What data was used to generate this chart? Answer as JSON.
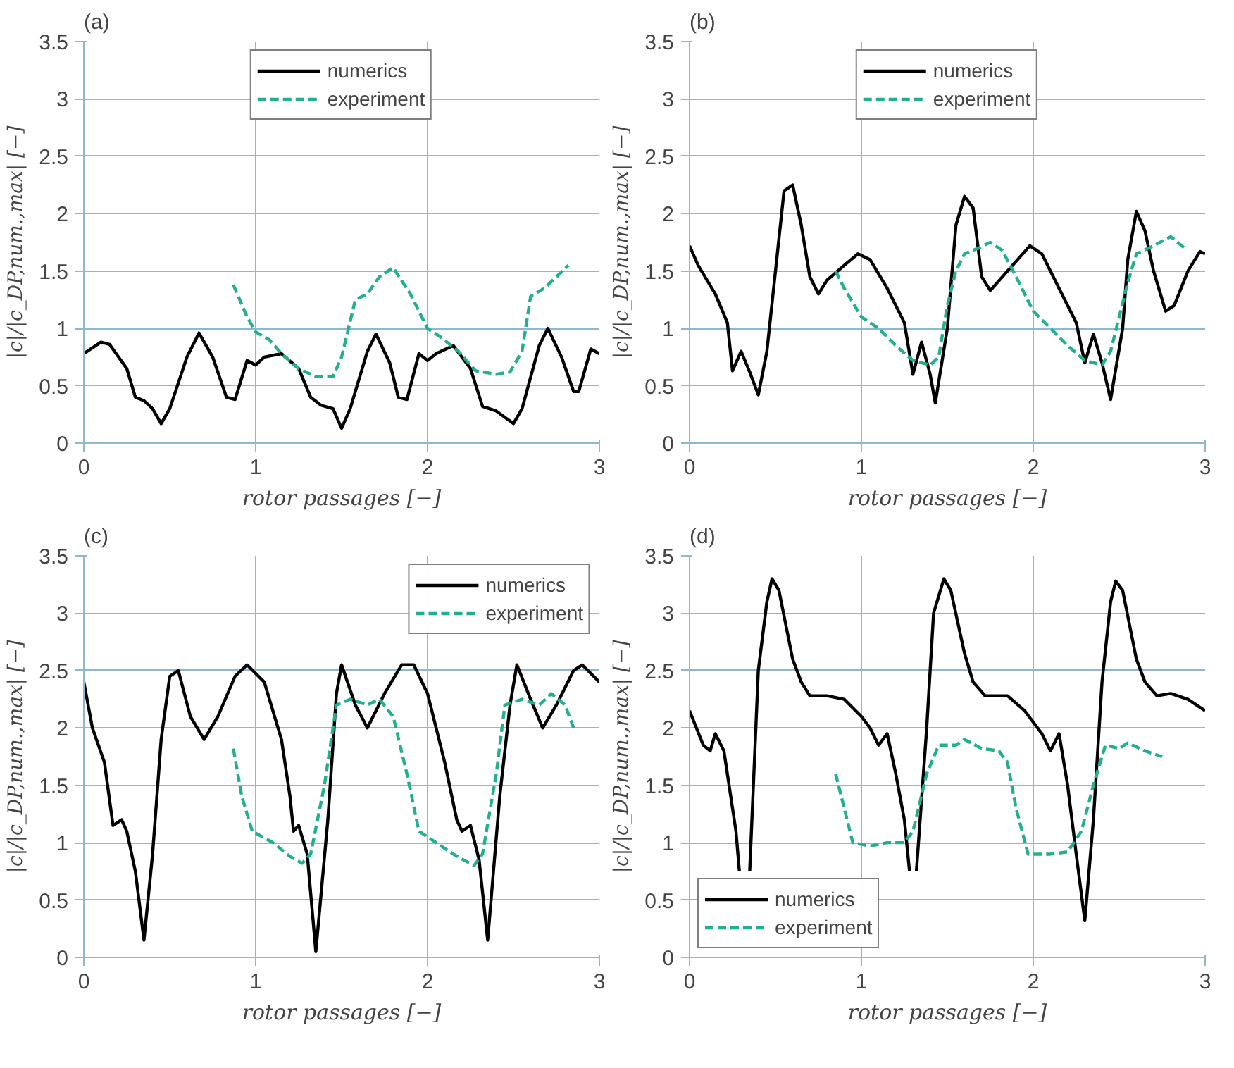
{
  "chart_data": [
    {
      "type": "line",
      "title": "(a)",
      "xlabel": "rotor passages [−]",
      "ylabel": "|c|/|c_DP,num.,max| [−]",
      "xlim": [
        0,
        3
      ],
      "xticks": [
        0,
        1,
        2,
        3
      ],
      "ylim": [
        0,
        3.5
      ],
      "yticks": [
        0,
        0.5,
        1,
        1.5,
        2,
        2.5,
        3,
        3.5
      ],
      "grid": true,
      "legend": "top",
      "series": [
        {
          "name": "numerics",
          "color": "#000000",
          "line_style": "solid",
          "x": [
            0,
            0.1,
            0.15,
            0.25,
            0.3,
            0.35,
            0.4,
            0.45,
            0.5,
            0.6,
            0.67,
            0.75,
            0.83,
            0.88,
            0.95,
            1.0,
            1.05,
            1.15,
            1.25,
            1.32,
            1.38,
            1.45,
            1.5,
            1.55,
            1.65,
            1.7,
            1.78,
            1.83,
            1.88,
            1.95,
            2.0,
            2.05,
            2.15,
            2.25,
            2.32,
            2.4,
            2.5,
            2.55,
            2.65,
            2.7,
            2.78,
            2.85,
            2.88,
            2.95,
            3.0
          ],
          "values": [
            0.78,
            0.88,
            0.86,
            0.65,
            0.4,
            0.37,
            0.3,
            0.17,
            0.3,
            0.75,
            0.96,
            0.75,
            0.4,
            0.38,
            0.72,
            0.68,
            0.75,
            0.78,
            0.65,
            0.4,
            0.33,
            0.3,
            0.13,
            0.3,
            0.8,
            0.95,
            0.7,
            0.4,
            0.38,
            0.78,
            0.72,
            0.78,
            0.85,
            0.65,
            0.32,
            0.28,
            0.17,
            0.3,
            0.85,
            1.0,
            0.75,
            0.45,
            0.45,
            0.82,
            0.78
          ]
        },
        {
          "name": "experiment",
          "color": "#20b090",
          "line_style": "dashed",
          "x": [
            0.87,
            0.95,
            1.0,
            1.08,
            1.15,
            1.25,
            1.35,
            1.45,
            1.5,
            1.58,
            1.65,
            1.72,
            1.8,
            1.9,
            2.0,
            2.08,
            2.18,
            2.28,
            2.4,
            2.48,
            2.55,
            2.6,
            2.68,
            2.75,
            2.82
          ],
          "values": [
            1.38,
            1.1,
            0.97,
            0.9,
            0.78,
            0.65,
            0.58,
            0.58,
            0.75,
            1.25,
            1.3,
            1.45,
            1.53,
            1.3,
            1.0,
            0.92,
            0.8,
            0.63,
            0.6,
            0.62,
            0.8,
            1.28,
            1.35,
            1.45,
            1.55
          ]
        }
      ]
    },
    {
      "type": "line",
      "title": "(b)",
      "xlabel": "rotor passages [−]",
      "ylabel": "|c|/|c_DP,num.,max| [−]",
      "xlim": [
        0,
        3
      ],
      "xticks": [
        0,
        1,
        2,
        3
      ],
      "ylim": [
        0,
        3.5
      ],
      "yticks": [
        0,
        0.5,
        1,
        1.5,
        2,
        2.5,
        3,
        3.5
      ],
      "grid": true,
      "legend": "top",
      "series": [
        {
          "name": "numerics",
          "color": "#000000",
          "line_style": "solid",
          "x": [
            0,
            0.05,
            0.15,
            0.22,
            0.25,
            0.3,
            0.35,
            0.4,
            0.45,
            0.5,
            0.55,
            0.6,
            0.65,
            0.7,
            0.75,
            0.8,
            0.9,
            0.98,
            1.05,
            1.15,
            1.25,
            1.3,
            1.35,
            1.4,
            1.43,
            1.5,
            1.55,
            1.6,
            1.65,
            1.7,
            1.75,
            1.85,
            1.98,
            2.05,
            2.15,
            2.25,
            2.3,
            2.35,
            2.4,
            2.45,
            2.52,
            2.55,
            2.6,
            2.65,
            2.7,
            2.77,
            2.82,
            2.9,
            2.97,
            3.0
          ],
          "values": [
            1.72,
            1.55,
            1.3,
            1.05,
            0.63,
            0.8,
            0.62,
            0.42,
            0.8,
            1.5,
            2.2,
            2.25,
            1.9,
            1.45,
            1.3,
            1.42,
            1.55,
            1.65,
            1.6,
            1.35,
            1.05,
            0.6,
            0.88,
            0.6,
            0.35,
            1.0,
            1.9,
            2.15,
            2.05,
            1.45,
            1.33,
            1.5,
            1.72,
            1.65,
            1.35,
            1.05,
            0.7,
            0.95,
            0.7,
            0.38,
            1.0,
            1.6,
            2.02,
            1.85,
            1.5,
            1.15,
            1.2,
            1.5,
            1.67,
            1.65
          ]
        },
        {
          "name": "experiment",
          "color": "#20b090",
          "line_style": "dashed",
          "x": [
            0.85,
            0.9,
            1.0,
            1.1,
            1.2,
            1.3,
            1.4,
            1.45,
            1.5,
            1.55,
            1.6,
            1.68,
            1.75,
            1.82,
            1.9,
            2.0,
            2.1,
            2.2,
            2.3,
            2.4,
            2.45,
            2.55,
            2.6,
            2.7,
            2.8,
            2.88
          ],
          "values": [
            1.5,
            1.35,
            1.1,
            1.0,
            0.85,
            0.72,
            0.68,
            0.75,
            1.2,
            1.5,
            1.65,
            1.7,
            1.75,
            1.68,
            1.45,
            1.15,
            1.0,
            0.85,
            0.72,
            0.68,
            0.8,
            1.4,
            1.65,
            1.72,
            1.8,
            1.7
          ]
        }
      ]
    },
    {
      "type": "line",
      "title": "(c)",
      "xlabel": "rotor passages [−]",
      "ylabel": "|c|/|c_DP,num.,max| [−]",
      "xlim": [
        0,
        3
      ],
      "xticks": [
        0,
        1,
        2,
        3
      ],
      "ylim": [
        0,
        3.5
      ],
      "yticks": [
        0,
        0.5,
        1,
        1.5,
        2,
        2.5,
        3,
        3.5
      ],
      "grid": true,
      "legend": "top right",
      "series": [
        {
          "name": "numerics",
          "color": "#000000",
          "line_style": "solid",
          "x": [
            0,
            0.05,
            0.12,
            0.17,
            0.22,
            0.25,
            0.3,
            0.35,
            0.4,
            0.45,
            0.5,
            0.55,
            0.62,
            0.7,
            0.78,
            0.88,
            0.95,
            1.05,
            1.15,
            1.2,
            1.22,
            1.25,
            1.3,
            1.35,
            1.42,
            1.47,
            1.5,
            1.58,
            1.65,
            1.75,
            1.85,
            1.92,
            2.0,
            2.1,
            2.17,
            2.2,
            2.25,
            2.3,
            2.35,
            2.42,
            2.48,
            2.52,
            2.6,
            2.67,
            2.75,
            2.85,
            2.9,
            3.0
          ],
          "values": [
            2.4,
            2.0,
            1.7,
            1.15,
            1.2,
            1.1,
            0.75,
            0.15,
            0.9,
            1.9,
            2.45,
            2.5,
            2.1,
            1.9,
            2.1,
            2.45,
            2.55,
            2.4,
            1.9,
            1.4,
            1.1,
            1.15,
            0.9,
            0.05,
            1.2,
            2.3,
            2.55,
            2.2,
            2.0,
            2.3,
            2.55,
            2.55,
            2.3,
            1.7,
            1.2,
            1.1,
            1.15,
            0.85,
            0.15,
            1.4,
            2.2,
            2.55,
            2.25,
            2.0,
            2.2,
            2.5,
            2.55,
            2.4
          ]
        },
        {
          "name": "experiment",
          "color": "#20b090",
          "line_style": "dashed",
          "x": [
            0.87,
            0.92,
            0.98,
            1.1,
            1.2,
            1.27,
            1.32,
            1.4,
            1.47,
            1.55,
            1.65,
            1.72,
            1.8,
            1.88,
            1.95,
            2.05,
            2.15,
            2.27,
            2.32,
            2.4,
            2.45,
            2.55,
            2.65,
            2.72,
            2.8,
            2.85
          ],
          "values": [
            1.82,
            1.4,
            1.1,
            1.0,
            0.88,
            0.82,
            0.9,
            1.5,
            2.2,
            2.25,
            2.2,
            2.25,
            2.1,
            1.6,
            1.1,
            1.0,
            0.9,
            0.8,
            0.9,
            1.6,
            2.2,
            2.25,
            2.2,
            2.3,
            2.2,
            2.0
          ]
        }
      ]
    },
    {
      "type": "line",
      "title": "(d)",
      "xlabel": "rotor passages [−]",
      "ylabel": "|c|/|c_DP,num.,max| [−]",
      "xlim": [
        0,
        3
      ],
      "xticks": [
        0,
        1,
        2,
        3
      ],
      "ylim": [
        0,
        3.5
      ],
      "yticks": [
        0,
        0.5,
        1,
        1.5,
        2,
        2.5,
        3,
        3.5
      ],
      "grid": true,
      "legend": "bottom left",
      "series": [
        {
          "name": "numerics",
          "color": "#000000",
          "line_style": "solid",
          "x": [
            0,
            0.08,
            0.12,
            0.15,
            0.2,
            0.25,
            0.27,
            0.29,
            0.31,
            0.35,
            0.4,
            0.45,
            0.48,
            0.52,
            0.6,
            0.65,
            0.7,
            0.8,
            0.9,
            1.0,
            1.05,
            1.1,
            1.15,
            1.2,
            1.25,
            1.28,
            1.3,
            1.32,
            1.38,
            1.42,
            1.48,
            1.52,
            1.6,
            1.65,
            1.72,
            1.85,
            1.95,
            2.05,
            2.1,
            2.15,
            2.2,
            2.25,
            2.3,
            2.35,
            2.4,
            2.45,
            2.48,
            2.52,
            2.6,
            2.65,
            2.72,
            2.8,
            2.9,
            3.0
          ],
          "values": [
            2.15,
            1.85,
            1.8,
            1.95,
            1.8,
            1.3,
            1.1,
            0.75,
            null,
            0.75,
            2.5,
            3.1,
            3.3,
            3.2,
            2.6,
            2.4,
            2.28,
            2.28,
            2.25,
            2.1,
            2.0,
            1.85,
            1.95,
            1.6,
            1.2,
            0.75,
            null,
            0.75,
            2.0,
            3.0,
            3.3,
            3.2,
            2.65,
            2.4,
            2.28,
            2.28,
            2.15,
            1.95,
            1.8,
            1.95,
            1.5,
            0.9,
            0.32,
            1.2,
            2.4,
            3.1,
            3.28,
            3.2,
            2.6,
            2.4,
            2.28,
            2.3,
            2.25,
            2.15
          ]
        },
        {
          "name": "experiment",
          "color": "#20b090",
          "line_style": "dashed",
          "x": [
            0.85,
            0.9,
            0.95,
            1.05,
            1.15,
            1.25,
            1.3,
            1.38,
            1.45,
            1.55,
            1.6,
            1.7,
            1.8,
            1.85,
            1.9,
            1.97,
            2.1,
            2.2,
            2.28,
            2.35,
            2.42,
            2.5,
            2.55,
            2.65,
            2.75
          ],
          "values": [
            1.6,
            1.3,
            1.0,
            0.97,
            1.0,
            1.0,
            1.1,
            1.6,
            1.85,
            1.85,
            1.9,
            1.82,
            1.8,
            1.7,
            1.3,
            0.9,
            0.9,
            0.92,
            1.1,
            1.5,
            1.85,
            1.82,
            1.87,
            1.8,
            1.75
          ]
        }
      ]
    }
  ]
}
